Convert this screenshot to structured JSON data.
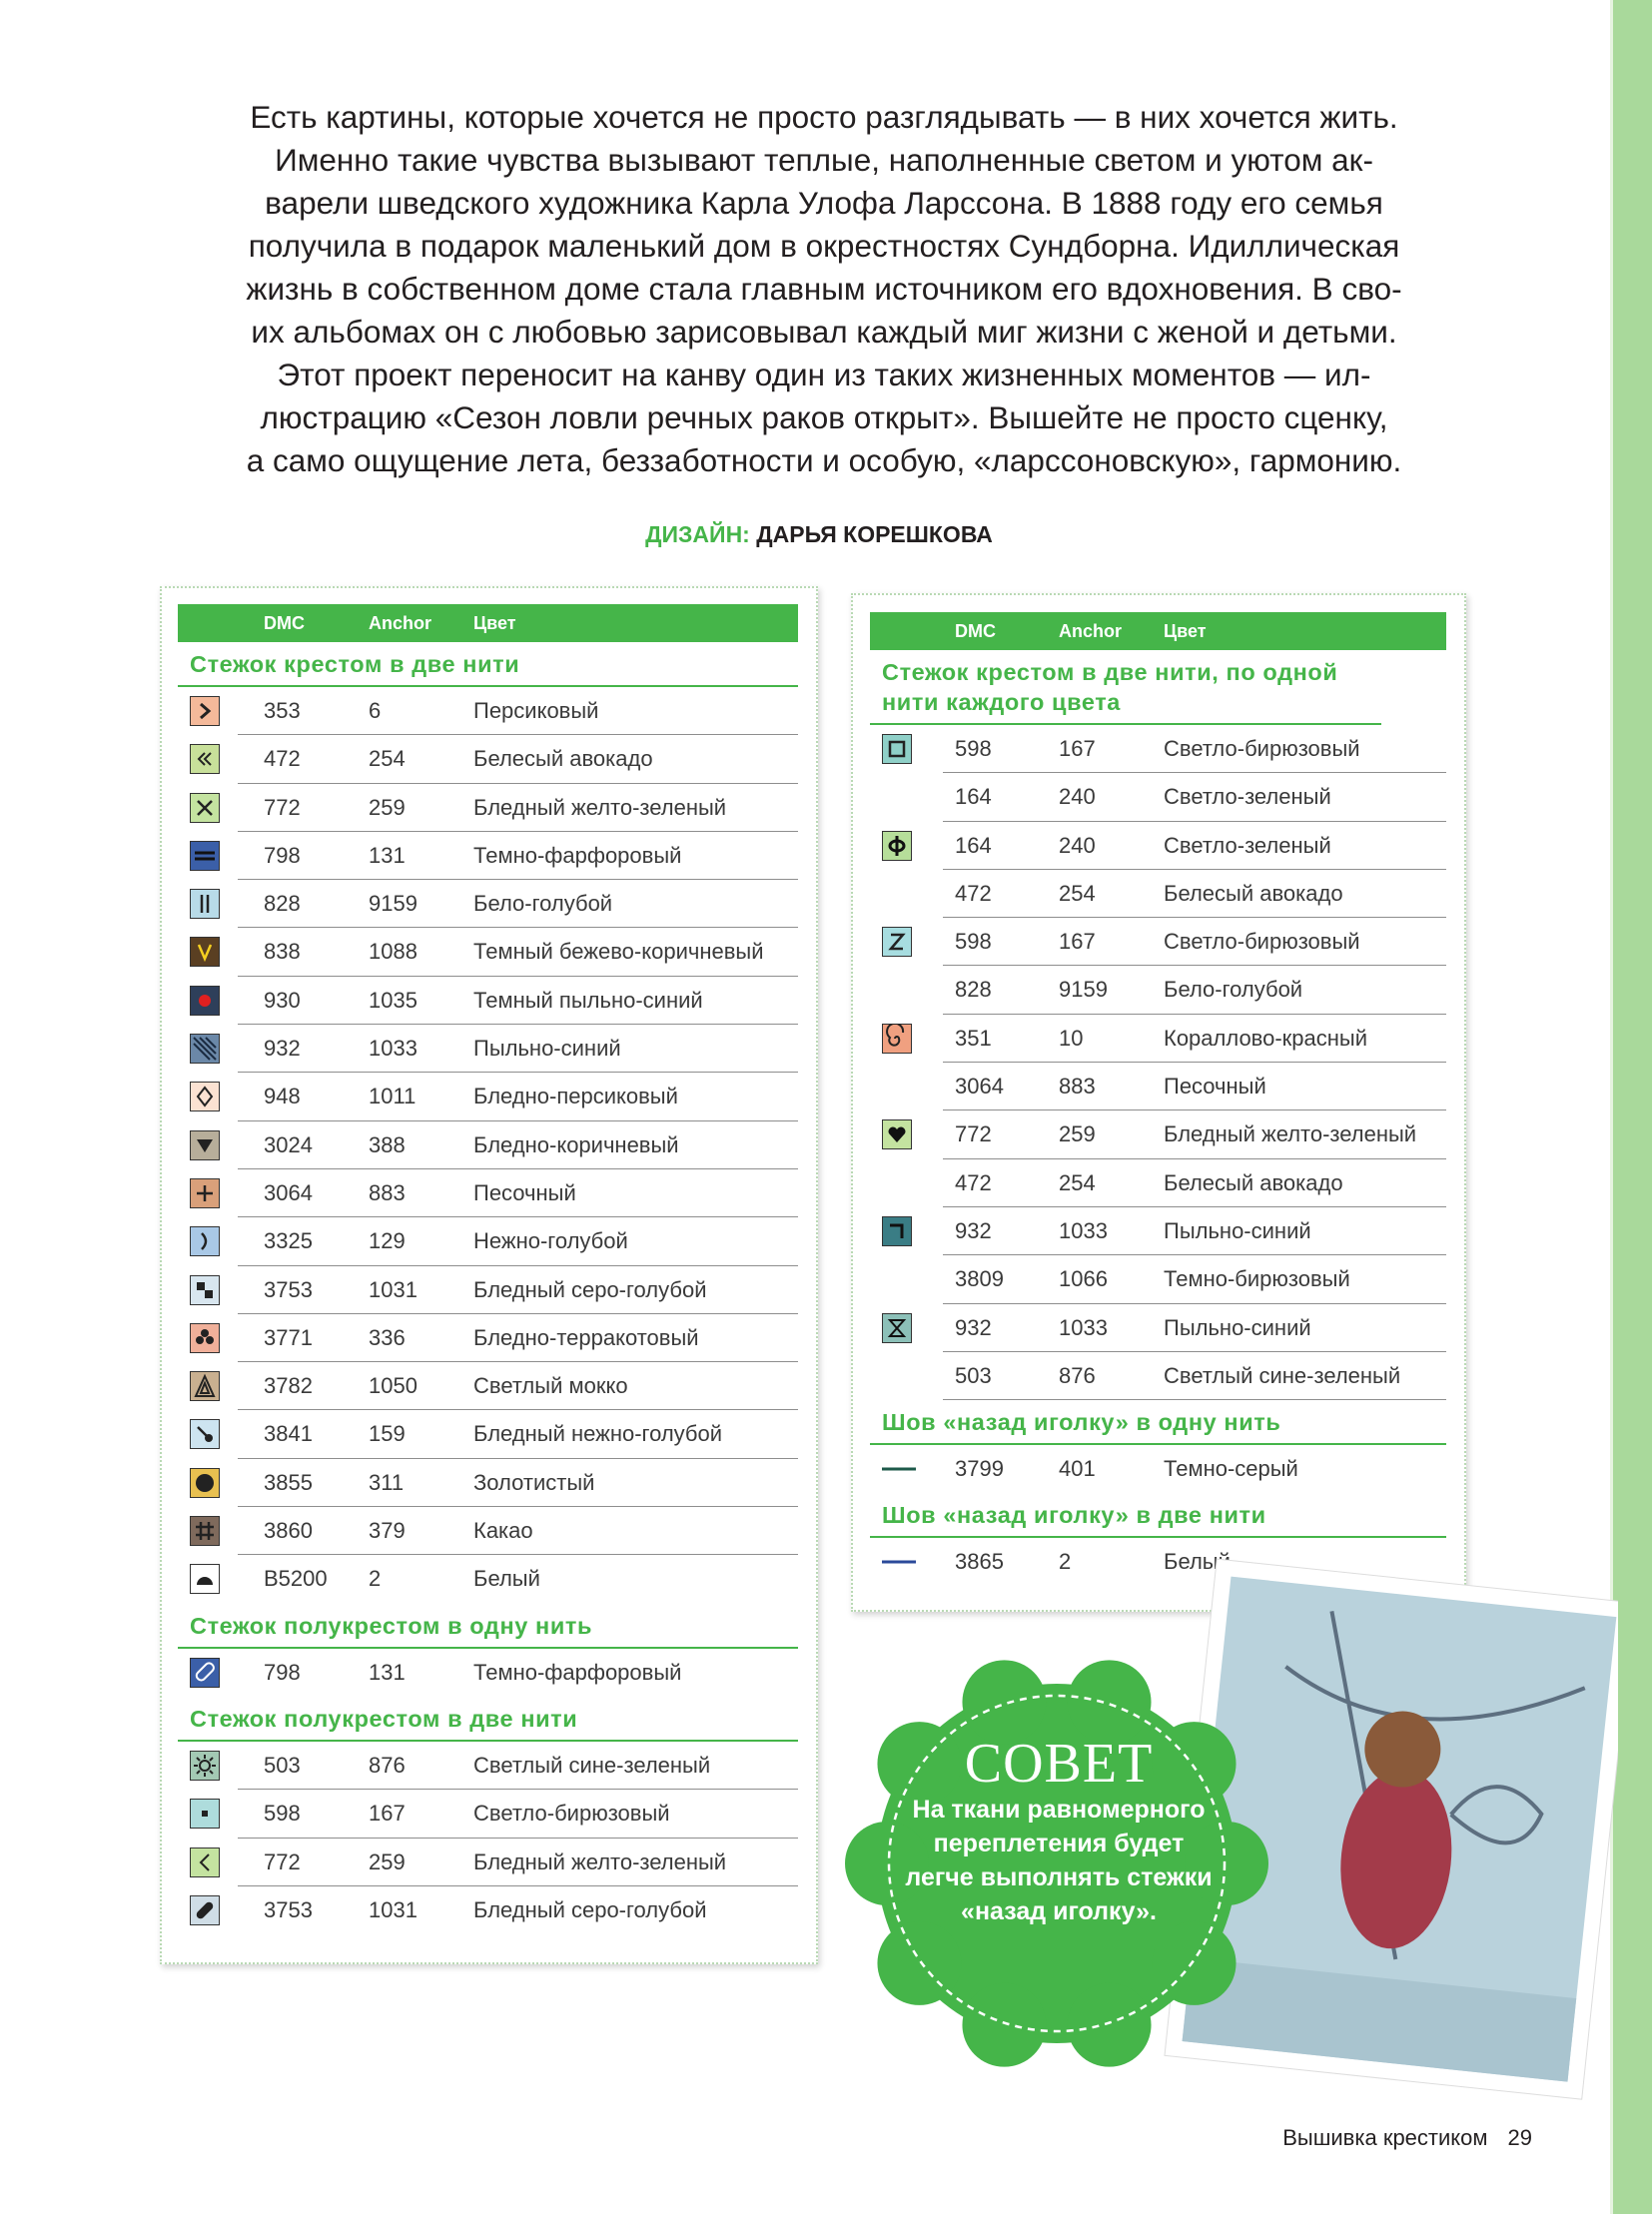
{
  "intro": [
    "Есть картины, которые хочется не просто разглядывать — в них хочется жить.",
    "Именно такие чувства вызывают теплые, наполненные светом и уютом ак-",
    "варели шведского художника Карла Улофа Ларссона. В 1888 году его семья",
    "получила в подарок маленький дом в окрестностях Сундборна. Идиллическая",
    "жизнь в собственном доме стала главным источником его вдохновения. В сво-",
    "их альбомах он с любовью зарисовывал каждый миг жизни с женой и детьми.",
    "Этот проект переносит на канву один из таких жизненных моментов — ил-",
    "люстрацию «Сезон ловли речных раков открыт». Вышейте не просто сценку,",
    "а само ощущение лета, беззаботности и особую, «ларссоновскую», гармонию."
  ],
  "design": {
    "label": "ДИЗАЙН:",
    "name": "ДАРЬЯ КОРЕШКОВА"
  },
  "left_table": {
    "headers": [
      "DMC",
      "Anchor",
      "Цвет"
    ],
    "sections": [
      {
        "title": "Стежок крестом в две нити",
        "rows": [
          [
            "353",
            "6",
            "Персиковый"
          ],
          [
            "472",
            "254",
            "Белесый авокадо"
          ],
          [
            "772",
            "259",
            "Бледный желто-зеленый"
          ],
          [
            "798",
            "131",
            "Темно-фарфоровый"
          ],
          [
            "828",
            "9159",
            "Бело-голубой"
          ],
          [
            "838",
            "1088",
            "Темный бежево-коричневый"
          ],
          [
            "930",
            "1035",
            "Темный пыльно-синий"
          ],
          [
            "932",
            "1033",
            "Пыльно-синий"
          ],
          [
            "948",
            "1011",
            "Бледно-персиковый"
          ],
          [
            "3024",
            "388",
            "Бледно-коричневый"
          ],
          [
            "3064",
            "883",
            "Песочный"
          ],
          [
            "3325",
            "129",
            "Нежно-голубой"
          ],
          [
            "3753",
            "1031",
            "Бледный серо-голубой"
          ],
          [
            "3771",
            "336",
            "Бледно-терракотовый"
          ],
          [
            "3782",
            "1050",
            "Светлый мокко"
          ],
          [
            "3841",
            "159",
            "Бледный нежно-голубой"
          ],
          [
            "3855",
            "311",
            "Золотистый"
          ],
          [
            "3860",
            "379",
            "Какао"
          ],
          [
            "B5200",
            "2",
            "Белый"
          ]
        ]
      },
      {
        "title": "Стежок полукрестом в одну нить",
        "rows": [
          [
            "798",
            "131",
            "Темно-фарфоровый"
          ]
        ]
      },
      {
        "title": "Стежок полукрестом в две нити",
        "rows": [
          [
            "503",
            "876",
            "Светлый сине-зеленый"
          ],
          [
            "598",
            "167",
            "Светло-бирюзовый"
          ],
          [
            "772",
            "259",
            "Бледный желто-зеленый"
          ],
          [
            "3753",
            "1031",
            "Бледный серо-голубой"
          ]
        ]
      }
    ]
  },
  "right_table": {
    "headers": [
      "DMC",
      "Anchor",
      "Цвет"
    ],
    "sections": [
      {
        "title": "Стежок крестом в две нити, по одной нити каждого цвета",
        "rows": [
          [
            "598",
            "167",
            "Светло-бирюзовый"
          ],
          [
            "164",
            "240",
            "Светло-зеленый"
          ],
          [
            "164",
            "240",
            "Светло-зеленый"
          ],
          [
            "472",
            "254",
            "Белесый авокадо"
          ],
          [
            "598",
            "167",
            "Светло-бирюзовый"
          ],
          [
            "828",
            "9159",
            "Бело-голубой"
          ],
          [
            "351",
            "10",
            "Кораллово-красный"
          ],
          [
            "3064",
            "883",
            "Песочный"
          ],
          [
            "772",
            "259",
            "Бледный желто-зеленый"
          ],
          [
            "472",
            "254",
            "Белесый авокадо"
          ],
          [
            "932",
            "1033",
            "Пыльно-синий"
          ],
          [
            "3809",
            "1066",
            "Темно-бирюзовый"
          ],
          [
            "932",
            "1033",
            "Пыльно-синий"
          ],
          [
            "503",
            "876",
            "Светлый сине-зеленый"
          ]
        ]
      },
      {
        "title": "Шов «назад иголку» в одну нить",
        "rows": [
          [
            "3799",
            "401",
            "Темно-серый"
          ]
        ]
      },
      {
        "title": "Шов «назад иголку» в две нити",
        "rows": [
          [
            "3865",
            "2",
            "Белый"
          ]
        ]
      }
    ]
  },
  "tip": {
    "title": "СОВЕТ",
    "text": "На ткани равномерного переплетения будет легче выполнять стежки «назад иголку»."
  },
  "footer": {
    "section": "Вышивка крестиком",
    "page": "29"
  }
}
